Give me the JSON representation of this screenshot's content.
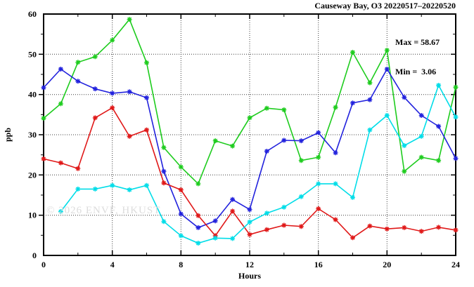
{
  "annotations": {
    "max_label": "Max = 58.67",
    "min_label": "Min =  3.06",
    "watermark": "© 2026 ENVF, HKUST"
  },
  "chart_data": {
    "type": "line",
    "title": "Causeway Bay, O3 20220517–20220520",
    "xlabel": "Hours",
    "ylabel": "ppb",
    "xlim": [
      0,
      24
    ],
    "ylim": [
      0,
      60
    ],
    "xticks": [
      0,
      4,
      8,
      12,
      16,
      20,
      24
    ],
    "xticks_minor": [
      2,
      6,
      10,
      14,
      18,
      22
    ],
    "yticks": [
      0,
      10,
      20,
      30,
      40,
      50,
      60
    ],
    "yticks_minor": [
      5,
      15,
      25,
      35,
      45,
      55
    ],
    "grid": true,
    "legend_position": "none",
    "marker": "asterisk",
    "max": 58.67,
    "min": 3.06,
    "series": [
      {
        "name": "green",
        "color": "#1ecc1e",
        "x": [
          0,
          1,
          2,
          3,
          4,
          5,
          6,
          7,
          8,
          9,
          10,
          11,
          12,
          13,
          14,
          15,
          16,
          17,
          18,
          19,
          20,
          21,
          22,
          23,
          24
        ],
        "values": [
          34.1,
          37.7,
          48.0,
          49.4,
          53.5,
          58.67,
          47.9,
          26.8,
          22.0,
          17.8,
          28.5,
          27.2,
          34.2,
          36.6,
          36.2,
          23.6,
          24.4,
          36.8,
          50.5,
          42.9,
          51.0,
          20.9,
          24.4,
          23.6,
          41.8
        ]
      },
      {
        "name": "blue",
        "color": "#2222dd",
        "x": [
          0,
          1,
          2,
          3,
          4,
          5,
          6,
          7,
          8,
          9,
          10,
          11,
          12,
          13,
          14,
          15,
          16,
          17,
          18,
          19,
          20,
          21,
          22,
          23,
          24
        ],
        "values": [
          41.7,
          46.3,
          43.3,
          41.4,
          40.3,
          40.7,
          39.2,
          20.9,
          10.3,
          6.9,
          8.6,
          13.9,
          11.4,
          25.9,
          28.6,
          28.5,
          30.5,
          25.5,
          37.9,
          38.7,
          46.3,
          39.3,
          34.8,
          32.1,
          24.1
        ]
      },
      {
        "name": "red",
        "color": "#e01818",
        "x": [
          0,
          1,
          2,
          3,
          4,
          5,
          6,
          7,
          8,
          9,
          10,
          11,
          12,
          13,
          14,
          15,
          16,
          17,
          18,
          19,
          20,
          21,
          22,
          23,
          24
        ],
        "values": [
          24.0,
          23.0,
          21.6,
          34.2,
          36.7,
          29.6,
          31.2,
          18.0,
          16.3,
          9.9,
          4.9,
          11.0,
          5.2,
          6.4,
          7.5,
          7.2,
          11.6,
          8.9,
          4.4,
          7.3,
          6.6,
          6.9,
          6.0,
          7.0,
          6.3
        ]
      },
      {
        "name": "cyan",
        "color": "#00dde8",
        "x": [
          1,
          2,
          3,
          4,
          5,
          6,
          7,
          8,
          9,
          10,
          11,
          12,
          13,
          14,
          15,
          16,
          17,
          18,
          19,
          20,
          21,
          22,
          23,
          24
        ],
        "values": [
          10.9,
          16.5,
          16.5,
          17.4,
          16.3,
          17.4,
          8.4,
          4.9,
          3.06,
          4.3,
          4.2,
          8.3,
          10.5,
          12.0,
          14.6,
          17.8,
          17.8,
          14.4,
          31.2,
          34.8,
          27.3,
          29.6,
          42.3,
          34.4
        ]
      }
    ]
  }
}
